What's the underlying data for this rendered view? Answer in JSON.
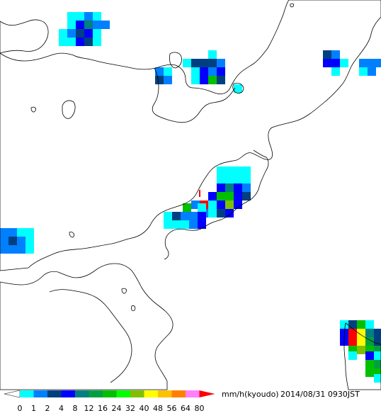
{
  "legend": {
    "unit": "mm/h(kyoudo)",
    "timestamp": "2014/08/31 0930JST",
    "ticks": [
      "0",
      "1",
      "2",
      "4",
      "8",
      "12",
      "16",
      "24",
      "32",
      "40",
      "48",
      "56",
      "64",
      "80"
    ],
    "colors": [
      "#00ffff",
      "#0080ff",
      "#004080",
      "#0000ff",
      "#008080",
      "#00a040",
      "#00c000",
      "#00ff00",
      "#80c000",
      "#ffff00",
      "#ffc000",
      "#ff8000",
      "#ff80ff",
      "#ff0080",
      "#ff0000"
    ],
    "under_color": "#ffffff",
    "over_color": "#ff0000"
  },
  "map": {
    "coastline_color": "#000000",
    "background_color": "#ffffff",
    "cell_size_mm": 12,
    "rain_cells": [
      {
        "lat_index": 0,
        "lon_index": 0,
        "level": 0
      }
    ]
  }
}
